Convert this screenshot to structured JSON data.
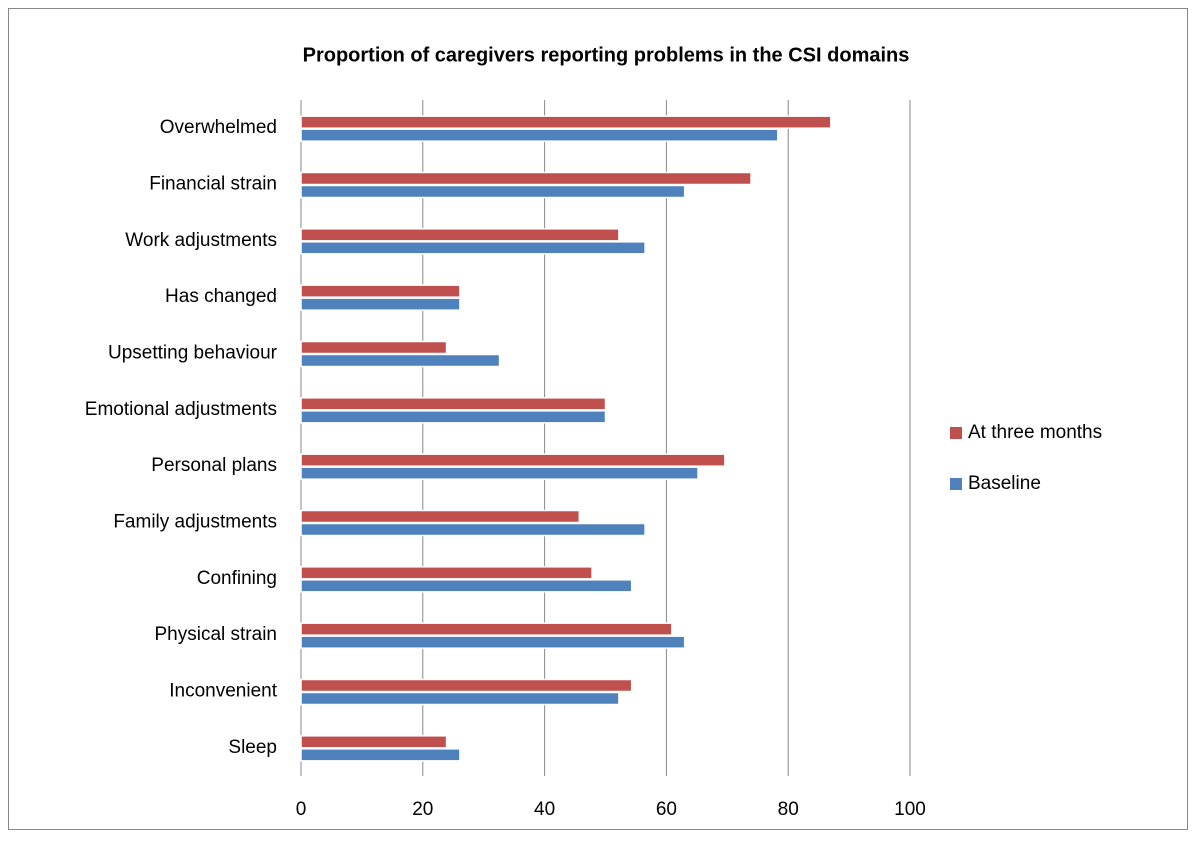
{
  "chart_data": {
    "type": "bar",
    "orientation": "horizontal",
    "title": "Proportion of caregivers reporting problems in the CSI domains",
    "categories": [
      "Overwhelmed",
      "Financial strain",
      "Work adjustments",
      "Has changed",
      "Upsetting behaviour",
      "Emotional adjustments",
      "Personal plans",
      "Family adjustments",
      "Confining",
      "Physical strain",
      "Inconvenient",
      "Sleep"
    ],
    "series": [
      {
        "name": "At three months",
        "color": "#c0504d",
        "values": [
          87,
          73.9,
          52.2,
          26.1,
          23.9,
          50,
          69.6,
          45.7,
          47.8,
          60.9,
          54.3,
          23.9
        ]
      },
      {
        "name": "Baseline",
        "color": "#4f81bd",
        "values": [
          78.3,
          63,
          56.5,
          26.1,
          32.6,
          50,
          65.2,
          56.5,
          54.3,
          63,
          52.2,
          26.1
        ]
      }
    ],
    "xlim": [
      0,
      100
    ],
    "xticks": [
      0,
      20,
      40,
      60,
      80,
      100
    ],
    "grid": true,
    "legend": "right"
  }
}
